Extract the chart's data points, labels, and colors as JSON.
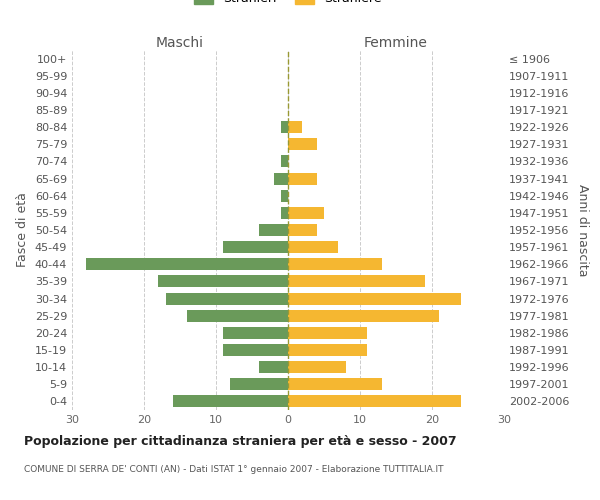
{
  "age_groups": [
    "100+",
    "95-99",
    "90-94",
    "85-89",
    "80-84",
    "75-79",
    "70-74",
    "65-69",
    "60-64",
    "55-59",
    "50-54",
    "45-49",
    "40-44",
    "35-39",
    "30-34",
    "25-29",
    "20-24",
    "15-19",
    "10-14",
    "5-9",
    "0-4"
  ],
  "birth_years": [
    "≤ 1906",
    "1907-1911",
    "1912-1916",
    "1917-1921",
    "1922-1926",
    "1927-1931",
    "1932-1936",
    "1937-1941",
    "1942-1946",
    "1947-1951",
    "1952-1956",
    "1957-1961",
    "1962-1966",
    "1967-1971",
    "1972-1976",
    "1977-1981",
    "1982-1986",
    "1987-1991",
    "1992-1996",
    "1997-2001",
    "2002-2006"
  ],
  "males": [
    0,
    0,
    0,
    0,
    1,
    0,
    1,
    2,
    1,
    1,
    4,
    9,
    28,
    18,
    17,
    14,
    9,
    9,
    4,
    8,
    16
  ],
  "females": [
    0,
    0,
    0,
    0,
    2,
    4,
    0,
    4,
    0,
    5,
    4,
    7,
    13,
    19,
    24,
    21,
    11,
    11,
    8,
    13,
    24
  ],
  "male_color": "#6a9a5a",
  "female_color": "#f5b731",
  "title": "Popolazione per cittadinanza straniera per età e sesso - 2007",
  "subtitle": "COMUNE DI SERRA DE' CONTI (AN) - Dati ISTAT 1° gennaio 2007 - Elaborazione TUTTITALIA.IT",
  "xlabel_left": "Maschi",
  "xlabel_right": "Femmine",
  "ylabel_left": "Fasce di età",
  "ylabel_right": "Anni di nascita",
  "xlim": 30,
  "background_color": "#ffffff",
  "grid_color": "#cccccc"
}
